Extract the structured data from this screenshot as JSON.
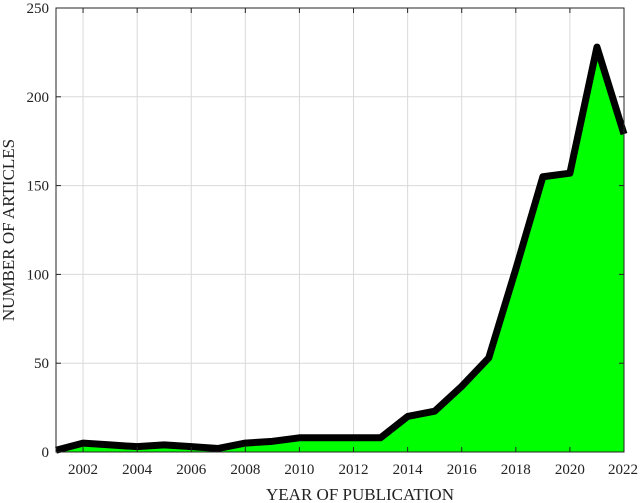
{
  "chart_data": {
    "type": "area",
    "title": "",
    "xlabel": "YEAR OF PUBLICATION",
    "ylabel": "NUMBER OF ARTICLES",
    "x": [
      2001,
      2002,
      2003,
      2004,
      2005,
      2006,
      2007,
      2008,
      2009,
      2010,
      2011,
      2012,
      2013,
      2014,
      2015,
      2016,
      2017,
      2018,
      2019,
      2020,
      2021,
      2022
    ],
    "series": [
      {
        "values": [
          1,
          5,
          4,
          3,
          4,
          3,
          2,
          5,
          6,
          8,
          8,
          8,
          8,
          20,
          23,
          37,
          53,
          103,
          155,
          157,
          228,
          179
        ]
      }
    ],
    "xlim": [
      2001,
      2022
    ],
    "ylim": [
      0,
      250
    ],
    "xticks": [
      "2002",
      "2004",
      "2006",
      "2008",
      "2010",
      "2012",
      "2014",
      "2016",
      "2018",
      "2020",
      "2022"
    ],
    "yticks": [
      "0",
      "50",
      "100",
      "150",
      "200",
      "250"
    ],
    "grid": true,
    "legend": "none",
    "fill_color": "#00ff00",
    "line_color": "#000000"
  }
}
